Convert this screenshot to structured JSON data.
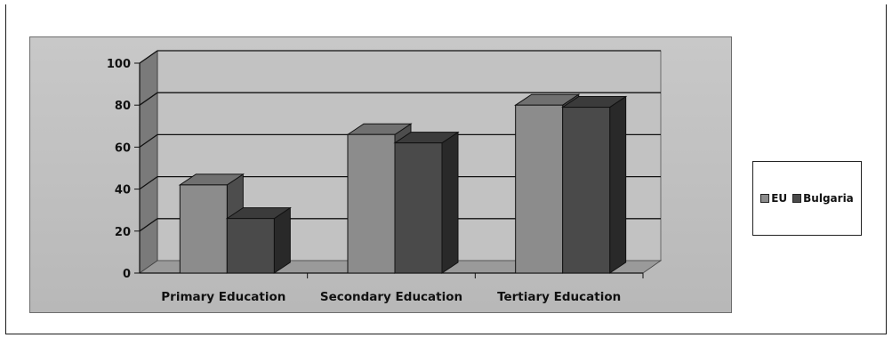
{
  "chart_data": {
    "type": "bar",
    "categories": [
      "Primary Education",
      "Secondary Education",
      "Tertiary Education"
    ],
    "series": [
      {
        "name": "EU",
        "values": [
          42,
          66,
          80
        ],
        "color": "#8c8c8c"
      },
      {
        "name": "Bulgaria",
        "values": [
          26,
          62,
          79
        ],
        "color": "#4a4a4a"
      }
    ],
    "yticks": [
      0,
      20,
      40,
      60,
      80,
      100
    ],
    "ylim": [
      0,
      100
    ],
    "grid": true,
    "legend_position": "right",
    "three_d": true
  }
}
